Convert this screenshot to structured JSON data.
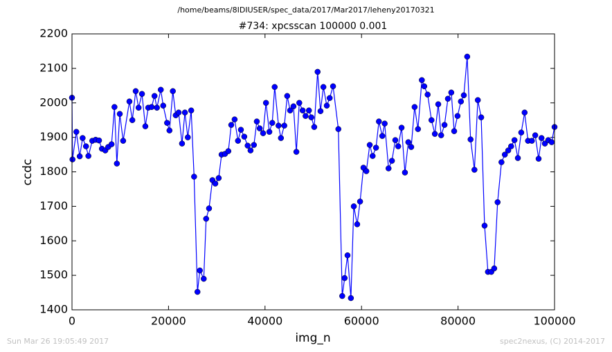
{
  "chart_data": {
    "type": "line",
    "suptitle": "/home/beams/8IDIUSER/spec_data/2017/Mar2017/leheny20170321",
    "title": "#734: xpcsscan 100000 0.001",
    "xlabel": "img_n",
    "ylabel": "ccdc",
    "footer_left": "Sun Mar 26 19:05:49 2017",
    "footer_right": "spec2nexus, (C) 2014-2017",
    "xlim": [
      0,
      100000
    ],
    "ylim": [
      1400,
      2200
    ],
    "xticks": [
      0,
      20000,
      40000,
      60000,
      80000,
      100000
    ],
    "yticks": [
      1400,
      1500,
      1600,
      1700,
      1800,
      1900,
      2000,
      2100,
      2200
    ],
    "grid": false,
    "x": [
      0,
      100,
      900,
      1600,
      2200,
      2900,
      3400,
      4200,
      4900,
      5600,
      6200,
      6900,
      7500,
      8200,
      8800,
      9300,
      9900,
      10600,
      11900,
      12500,
      13200,
      13800,
      14500,
      15200,
      15800,
      16500,
      17100,
      17600,
      18400,
      18900,
      19700,
      20200,
      20900,
      21500,
      22100,
      22800,
      23400,
      24000,
      24700,
      25300,
      26000,
      26500,
      27300,
      27800,
      28400,
      29100,
      29700,
      30400,
      31000,
      31700,
      32400,
      33000,
      33700,
      34400,
      35000,
      35700,
      36400,
      37000,
      37700,
      38300,
      38900,
      39600,
      40200,
      40900,
      41500,
      42000,
      42800,
      43300,
      44000,
      44600,
      45200,
      45900,
      46500,
      47100,
      47800,
      48400,
      49100,
      49600,
      50200,
      50900,
      51500,
      52100,
      52800,
      53400,
      54100,
      55200,
      56000,
      56500,
      57100,
      57800,
      58400,
      59100,
      59700,
      60400,
      61000,
      61700,
      62300,
      63000,
      63600,
      64300,
      64800,
      65600,
      66300,
      67000,
      67600,
      68300,
      69000,
      69700,
      70300,
      71000,
      71700,
      72500,
      73000,
      73700,
      74500,
      75200,
      75900,
      76500,
      77200,
      77900,
      78600,
      79200,
      79900,
      80600,
      81200,
      81900,
      82600,
      83400,
      84100,
      84800,
      85500,
      86200,
      86900,
      87500,
      88200,
      89000,
      89700,
      90400,
      91000,
      91700,
      92400,
      93100,
      93800,
      94500,
      95300,
      96000,
      96700,
      97300,
      98000,
      98700,
      99400,
      100000
    ],
    "series": [
      {
        "name": "ccdc",
        "color": "#0000ff",
        "values": [
          2015,
          1836,
          1916,
          1845,
          1898,
          1874,
          1846,
          1890,
          1893,
          1891,
          1867,
          1862,
          1872,
          1880,
          1988,
          1824,
          1968,
          1890,
          2004,
          1950,
          2034,
          1986,
          2026,
          1932,
          1986,
          1988,
          2020,
          1986,
          2038,
          1992,
          1942,
          1920,
          2034,
          1964,
          1972,
          1882,
          1972,
          1900,
          1978,
          1786,
          1452,
          1514,
          1490,
          1664,
          1694,
          1776,
          1766,
          1782,
          1850,
          1852,
          1860,
          1936,
          1952,
          1890,
          1922,
          1902,
          1876,
          1862,
          1878,
          1946,
          1926,
          1912,
          2000,
          1916,
          1942,
          2046,
          1934,
          1898,
          1934,
          2020,
          1978,
          1990,
          1858,
          2000,
          1978,
          1962,
          1978,
          1958,
          1930,
          2090,
          1976,
          2046,
          1992,
          2014,
          2048,
          1924,
          1440,
          1492,
          1558,
          1434,
          1700,
          1648,
          1714,
          1812,
          1802,
          1878,
          1846,
          1870,
          1946,
          1904,
          1940,
          1810,
          1832,
          1892,
          1874,
          1928,
          1798,
          1886,
          1872,
          1988,
          1924,
          2066,
          2048,
          2024,
          1950,
          1910,
          1996,
          1906,
          1936,
          2012,
          2030,
          1918,
          1962,
          2004,
          2022,
          2134,
          1894,
          1806,
          2008,
          1958,
          1644,
          1510,
          1510,
          1520,
          1712,
          1828,
          1850,
          1862,
          1874,
          1892,
          1840,
          1914,
          1972,
          1890,
          1890,
          1906,
          1838,
          1898,
          1882,
          1892,
          1886,
          1930
        ]
      }
    ]
  }
}
